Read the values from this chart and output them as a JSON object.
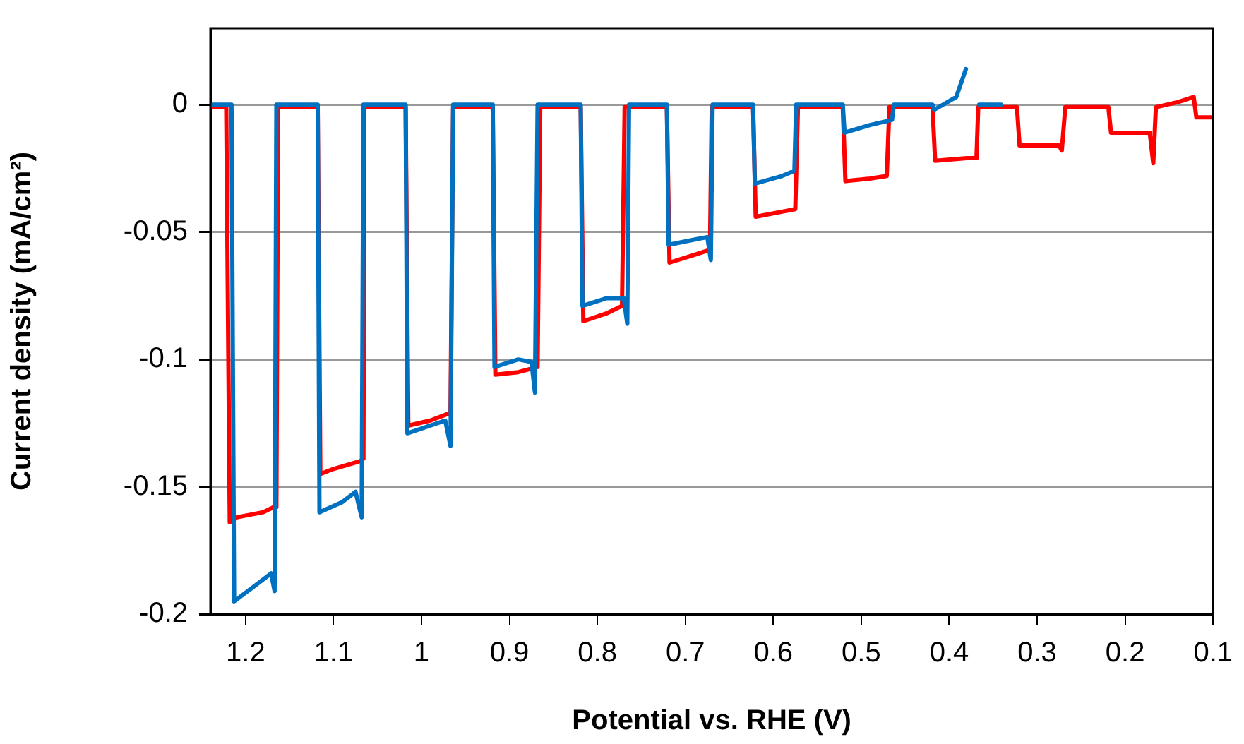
{
  "chart_data": {
    "type": "line",
    "xlabel": "Potential vs. RHE (V)",
    "ylabel": "Current density (mA/cm²)",
    "xlim": [
      1.24,
      0.1
    ],
    "xticks": [
      1.2,
      1.1,
      1,
      0.9,
      0.8,
      0.7,
      0.6,
      0.5,
      0.4,
      0.3,
      0.2,
      0.1
    ],
    "ylim": [
      -0.2,
      0.03
    ],
    "yticks": [
      0,
      -0.05,
      -0.1,
      -0.15,
      -0.2
    ],
    "grid": "y",
    "legend": false,
    "marker": "none",
    "line_style": "solid",
    "series": [
      {
        "color": "#0070c0",
        "x": [
          1.24,
          1.216,
          1.213,
          1.19,
          1.171,
          1.167,
          1.165,
          1.118,
          1.116,
          1.09,
          1.075,
          1.068,
          1.066,
          1.018,
          1.016,
          0.99,
          0.973,
          0.967,
          0.964,
          0.919,
          0.917,
          0.89,
          0.875,
          0.871,
          0.868,
          0.819,
          0.817,
          0.79,
          0.77,
          0.766,
          0.764,
          0.721,
          0.719,
          0.69,
          0.675,
          0.671,
          0.669,
          0.623,
          0.621,
          0.59,
          0.576,
          0.574,
          0.521,
          0.519,
          0.49,
          0.465,
          0.463,
          0.419,
          0.417,
          0.392,
          0.381,
          0.373,
          0.368,
          0.366,
          0.341
        ],
        "values": [
          0,
          0,
          -0.195,
          -0.189,
          -0.184,
          -0.191,
          0,
          0,
          -0.16,
          -0.156,
          -0.152,
          -0.162,
          0,
          0,
          -0.129,
          -0.126,
          -0.124,
          -0.134,
          0,
          0,
          -0.103,
          -0.1,
          -0.101,
          -0.113,
          0,
          0,
          -0.079,
          -0.076,
          -0.076,
          -0.086,
          0,
          0,
          -0.055,
          -0.053,
          -0.052,
          -0.061,
          0,
          0,
          -0.031,
          -0.028,
          -0.026,
          0,
          0,
          -0.011,
          -0.008,
          -0.006,
          0,
          0,
          -0.002,
          0.003,
          0.014,
          null,
          null,
          0,
          0
        ]
      },
      {
        "color": "#ff0000",
        "x": [
          1.24,
          1.222,
          1.218,
          1.21,
          1.18,
          1.168,
          1.165,
          1.163,
          1.118,
          1.115,
          1.1,
          1.07,
          1.066,
          1.065,
          1.018,
          1.015,
          0.99,
          0.967,
          0.964,
          0.919,
          0.916,
          0.89,
          0.868,
          0.865,
          0.819,
          0.816,
          0.79,
          0.772,
          0.769,
          0.721,
          0.718,
          0.69,
          0.672,
          0.67,
          0.623,
          0.62,
          0.59,
          0.575,
          0.572,
          0.521,
          0.518,
          0.49,
          0.471,
          0.468,
          0.419,
          0.416,
          0.38,
          0.369,
          0.367,
          0.323,
          0.32,
          0.29,
          0.275,
          0.272,
          0.268,
          0.219,
          0.216,
          0.19,
          0.172,
          0.168,
          0.165,
          0.14,
          0.122,
          0.119,
          0.1
        ],
        "values": [
          -0.001,
          -0.001,
          -0.164,
          -0.162,
          -0.16,
          -0.158,
          -0.158,
          -0.001,
          -0.001,
          -0.145,
          -0.143,
          -0.14,
          -0.139,
          -0.001,
          -0.001,
          -0.126,
          -0.124,
          -0.121,
          -0.001,
          -0.001,
          -0.106,
          -0.105,
          -0.103,
          -0.001,
          -0.001,
          -0.085,
          -0.082,
          -0.079,
          -0.001,
          -0.001,
          -0.062,
          -0.059,
          -0.057,
          -0.001,
          -0.001,
          -0.044,
          -0.042,
          -0.041,
          -0.001,
          -0.001,
          -0.03,
          -0.029,
          -0.028,
          -0.001,
          -0.001,
          -0.022,
          -0.021,
          -0.021,
          -0.001,
          -0.001,
          -0.016,
          -0.016,
          -0.016,
          -0.018,
          -0.001,
          -0.001,
          -0.011,
          -0.011,
          -0.011,
          -0.023,
          -0.001,
          0.001,
          0.003,
          -0.005,
          -0.005
        ]
      }
    ]
  }
}
